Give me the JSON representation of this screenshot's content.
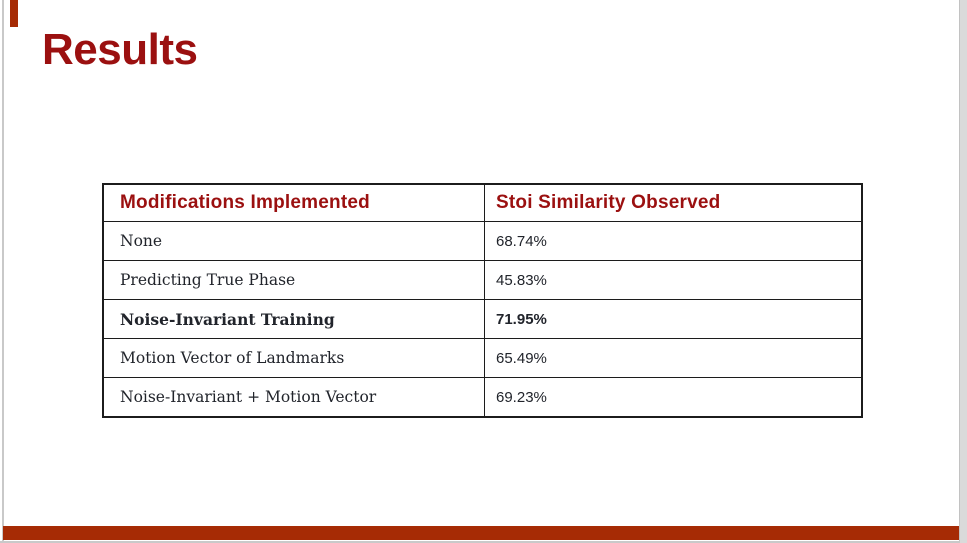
{
  "slide": {
    "title": "Results",
    "colors": {
      "accent-red": "#9B1010",
      "bar-red": "#A62B05",
      "table-border": "#1C1C1C",
      "text-dark": "#21242B",
      "edge-gray": "#C9C9C9"
    },
    "table": {
      "headers": [
        "Modifications Implemented",
        "Stoi Similarity Observed"
      ],
      "rows": [
        {
          "modification": "None",
          "stoi": "68.74%",
          "emphasized": false
        },
        {
          "modification": "Predicting True Phase",
          "stoi": "45.83%",
          "emphasized": false
        },
        {
          "modification": "Noise-Invariant Training",
          "stoi": "71.95%",
          "emphasized": true
        },
        {
          "modification": "Motion Vector of Landmarks",
          "stoi": "65.49%",
          "emphasized": false
        },
        {
          "modification": "Noise-Invariant + Motion Vector",
          "stoi": "69.23%",
          "emphasized": false
        }
      ]
    }
  },
  "chart_data": {
    "type": "table",
    "title": "Results",
    "columns": [
      "Modifications Implemented",
      "Stoi Similarity Observed"
    ],
    "rows": [
      [
        "None",
        "68.74%"
      ],
      [
        "Predicting True Phase",
        "45.83%"
      ],
      [
        "Noise-Invariant Training",
        "71.95%"
      ],
      [
        "Motion Vector of Landmarks",
        "65.49%"
      ],
      [
        "Noise-Invariant + Motion Vector",
        "69.23%"
      ]
    ],
    "stoi_values_percent": [
      68.74,
      45.83,
      71.95,
      65.49,
      69.23
    ],
    "emphasized_row": "Noise-Invariant Training"
  }
}
